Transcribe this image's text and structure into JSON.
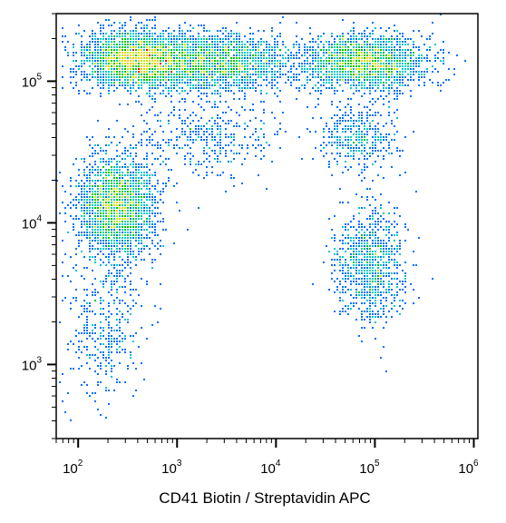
{
  "chart_data": {
    "type": "scatter",
    "subtype": "flow-cytometry density dot plot",
    "title": "",
    "xlabel": "CD41 Biotin / Streptavidin APC",
    "ylabel": "",
    "x_scale": "log",
    "y_scale": "log",
    "xlim": [
      60,
      1100000
    ],
    "ylim": [
      300,
      300000
    ],
    "x_ticks": [
      {
        "base": "10",
        "exp": "2",
        "value": 100
      },
      {
        "base": "10",
        "exp": "3",
        "value": 1000
      },
      {
        "base": "10",
        "exp": "4",
        "value": 10000
      },
      {
        "base": "10",
        "exp": "5",
        "value": 100000
      },
      {
        "base": "10",
        "exp": "6",
        "value": 1000000
      }
    ],
    "y_ticks": [
      {
        "base": "10",
        "exp": "3",
        "value": 1000
      },
      {
        "base": "10",
        "exp": "4",
        "value": 10000
      },
      {
        "base": "10",
        "exp": "5",
        "value": 100000
      }
    ],
    "grid": false,
    "legend": "none",
    "color_scale": [
      "#0000c8",
      "#0070ff",
      "#00c8c8",
      "#00c800",
      "#c8e600",
      "#ffc800",
      "#ff0000"
    ],
    "populations": [
      {
        "x_center": 400,
        "y_center": 140000,
        "x_spread_decades": 0.28,
        "y_spread_decades": 0.1,
        "relative_density": 1.0
      },
      {
        "x_center": 2500,
        "y_center": 135000,
        "x_spread_decades": 0.4,
        "y_spread_decades": 0.1,
        "relative_density": 0.75
      },
      {
        "x_center": 80000,
        "y_center": 135000,
        "x_spread_decades": 0.3,
        "y_spread_decades": 0.1,
        "relative_density": 0.8
      },
      {
        "x_center": 250,
        "y_center": 13000,
        "x_spread_decades": 0.2,
        "y_spread_decades": 0.18,
        "relative_density": 0.9
      },
      {
        "x_center": 90000,
        "y_center": 5000,
        "x_spread_decades": 0.18,
        "y_spread_decades": 0.2,
        "relative_density": 0.35
      },
      {
        "x_center": 2000,
        "y_center": 40000,
        "x_spread_decades": 0.35,
        "y_spread_decades": 0.15,
        "relative_density": 0.15
      },
      {
        "x_center": 70000,
        "y_center": 40000,
        "x_spread_decades": 0.2,
        "y_spread_decades": 0.12,
        "relative_density": 0.15
      },
      {
        "x_center": 180,
        "y_center": 1800,
        "x_spread_decades": 0.2,
        "y_spread_decades": 0.25,
        "relative_density": 0.15
      }
    ]
  }
}
